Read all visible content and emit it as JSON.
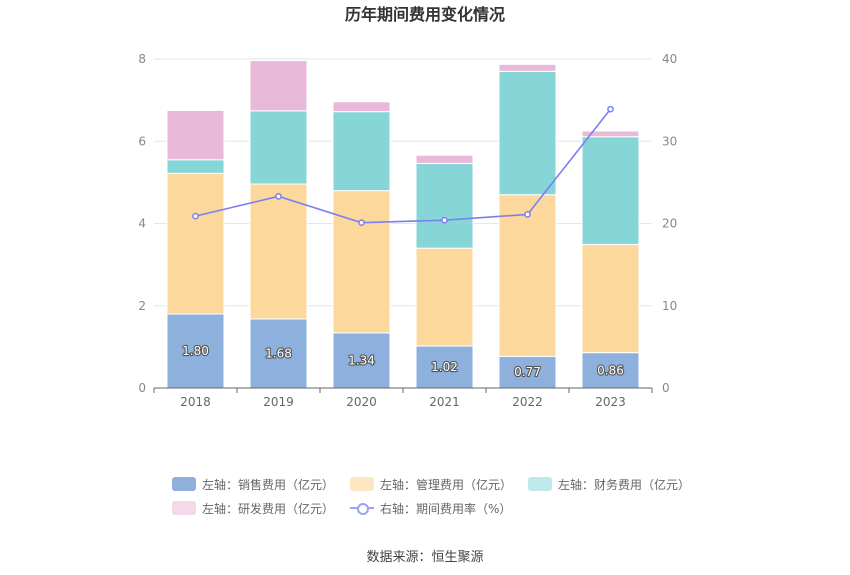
{
  "chart_data": {
    "type": "bar",
    "title": "历年期间费用变化情况",
    "categories": [
      "2018",
      "2019",
      "2020",
      "2021",
      "2022",
      "2023"
    ],
    "left_axis": {
      "ticks": [
        "0",
        "2",
        "4",
        "6",
        "8"
      ],
      "range": [
        0,
        8
      ]
    },
    "right_axis": {
      "ticks": [
        "0",
        "10",
        "20",
        "30",
        "40"
      ],
      "range": [
        0,
        40
      ]
    },
    "series": [
      {
        "name": "左轴：销售费用（亿元）",
        "axis": "left",
        "kind": "bar",
        "color": "#8eb0dd",
        "values": [
          1.8,
          1.68,
          1.34,
          1.02,
          0.77,
          0.86
        ],
        "labels": [
          "1.80",
          "1.68",
          "1.34",
          "1.02",
          "0.77",
          "0.86"
        ]
      },
      {
        "name": "左轴：管理费用（亿元）",
        "axis": "left",
        "kind": "bar",
        "color": "#fdd89c",
        "values": [
          3.42,
          3.28,
          3.46,
          2.38,
          3.93,
          2.63
        ]
      },
      {
        "name": "左轴：财务费用（亿元）",
        "axis": "left",
        "kind": "bar",
        "color": "#86d6d8",
        "values": [
          0.33,
          1.78,
          1.92,
          2.06,
          3.0,
          2.62
        ]
      },
      {
        "name": "左轴：研发费用（亿元）",
        "axis": "left",
        "kind": "bar",
        "color": "#e8b9d9",
        "values": [
          1.2,
          1.22,
          0.24,
          0.2,
          0.17,
          0.14
        ]
      },
      {
        "name": "右轴：期间费用率（%）",
        "axis": "right",
        "kind": "line",
        "color": "#7b80ee",
        "values": [
          20.9,
          23.3,
          20.1,
          20.4,
          21.1,
          33.9
        ]
      }
    ],
    "legend_position": "bottom",
    "grid": true
  },
  "footer": {
    "source": "数据来源：恒生聚源"
  }
}
